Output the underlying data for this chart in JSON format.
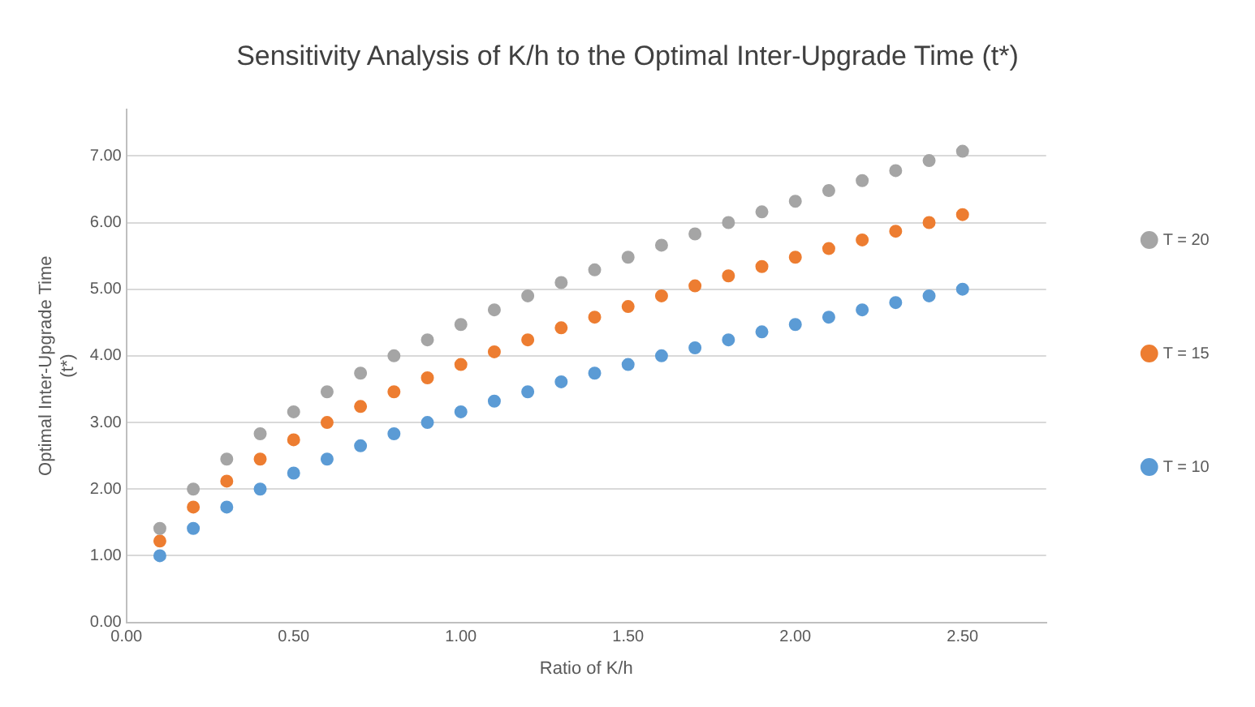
{
  "chart_data": {
    "type": "scatter",
    "title": "Sensitivity Analysis of K/h to the Optimal Inter-Upgrade Time (t*)",
    "xlabel": "Ratio of K/h",
    "ylabel": "Optimal Inter-Upgrade Time (t*)",
    "x": [
      0.1,
      0.2,
      0.3,
      0.4,
      0.5,
      0.6,
      0.7,
      0.8,
      0.9,
      1.0,
      1.1,
      1.2,
      1.3,
      1.4,
      1.5,
      1.6,
      1.7,
      1.8,
      1.9,
      2.0,
      2.1,
      2.2,
      2.3,
      2.4,
      2.5
    ],
    "series": [
      {
        "name": "T = 20",
        "color": "#a5a5a5",
        "values": [
          1.41,
          2.0,
          2.45,
          2.83,
          3.16,
          3.46,
          3.74,
          4.0,
          4.24,
          4.47,
          4.69,
          4.9,
          5.1,
          5.29,
          5.48,
          5.66,
          5.83,
          6.0,
          6.16,
          6.32,
          6.48,
          6.63,
          6.78,
          6.93,
          7.07
        ]
      },
      {
        "name": "T = 15",
        "color": "#ed7d31",
        "values": [
          1.22,
          1.73,
          2.12,
          2.45,
          2.74,
          3.0,
          3.24,
          3.46,
          3.67,
          3.87,
          4.06,
          4.24,
          4.42,
          4.58,
          4.74,
          4.9,
          5.05,
          5.2,
          5.34,
          5.48,
          5.61,
          5.74,
          5.87,
          6.0,
          6.12
        ]
      },
      {
        "name": "T = 10",
        "color": "#5b9bd5",
        "values": [
          1.0,
          1.41,
          1.73,
          2.0,
          2.24,
          2.45,
          2.65,
          2.83,
          3.0,
          3.16,
          3.32,
          3.46,
          3.61,
          3.74,
          3.87,
          4.0,
          4.12,
          4.24,
          4.36,
          4.47,
          4.58,
          4.69,
          4.8,
          4.9,
          5.0
        ]
      }
    ],
    "xlim": [
      0,
      2.75
    ],
    "xticks": [
      {
        "value": 0,
        "label": "0.00"
      },
      {
        "value": 0.5,
        "label": "0.50"
      },
      {
        "value": 1,
        "label": "1.00"
      },
      {
        "value": 1.5,
        "label": "1.50"
      },
      {
        "value": 2,
        "label": "2.00"
      },
      {
        "value": 2.5,
        "label": "2.50"
      }
    ],
    "ylim": [
      0,
      7.7
    ],
    "yticks": [
      {
        "value": 0,
        "label": "0.00"
      },
      {
        "value": 1,
        "label": "1.00"
      },
      {
        "value": 2,
        "label": "2.00"
      },
      {
        "value": 3,
        "label": "3.00"
      },
      {
        "value": 4,
        "label": "4.00"
      },
      {
        "value": 5,
        "label": "5.00"
      },
      {
        "value": 6,
        "label": "6.00"
      },
      {
        "value": 7,
        "label": "7.00"
      }
    ],
    "grid": "y",
    "legend": "right",
    "marker": "circle"
  }
}
